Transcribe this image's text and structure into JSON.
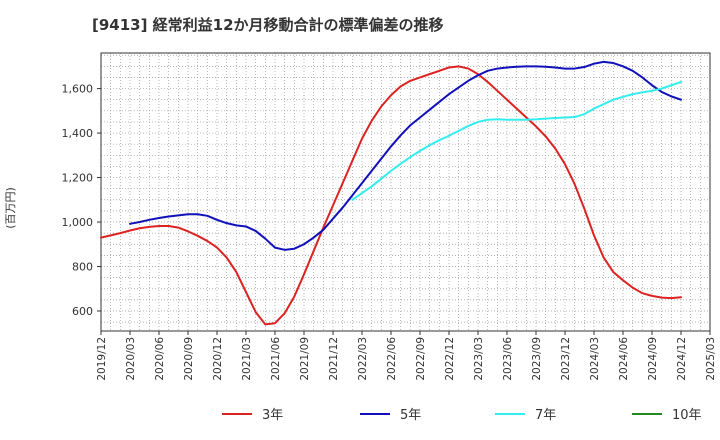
{
  "chart_data": {
    "type": "line",
    "title": "[9413]  経常利益12か月移動合計の標準偏差の推移",
    "ylabel": "(百万円)",
    "xlabel": "",
    "ylim": [
      510,
      1760
    ],
    "yticks": [
      600,
      800,
      1000,
      1200,
      1400,
      1600
    ],
    "ytick_labels": [
      "600",
      "800",
      "1,000",
      "1,200",
      "1,400",
      "1,600"
    ],
    "xlim": [
      "2019/12",
      "2025/03"
    ],
    "xticks": [
      "2019/12",
      "2020/03",
      "2020/06",
      "2020/09",
      "2020/12",
      "2021/03",
      "2021/06",
      "2021/09",
      "2021/12",
      "2022/03",
      "2022/06",
      "2022/09",
      "2022/12",
      "2023/03",
      "2023/06",
      "2023/09",
      "2023/12",
      "2024/03",
      "2024/06",
      "2024/09",
      "2024/12",
      "2025/03"
    ],
    "grid": true,
    "legend_position": "bottom",
    "series": [
      {
        "name": "3年",
        "color": "#dd2222",
        "x": [
          "2019/12",
          "2020/01",
          "2020/02",
          "2020/03",
          "2020/04",
          "2020/05",
          "2020/06",
          "2020/07",
          "2020/08",
          "2020/09",
          "2020/10",
          "2020/11",
          "2020/12",
          "2021/01",
          "2021/02",
          "2021/03",
          "2021/04",
          "2021/05",
          "2021/06",
          "2021/07",
          "2021/08",
          "2021/09",
          "2021/10",
          "2021/11",
          "2021/12",
          "2022/01",
          "2022/02",
          "2022/03",
          "2022/04",
          "2022/05",
          "2022/06",
          "2022/07",
          "2022/08",
          "2022/09",
          "2022/10",
          "2022/11",
          "2022/12",
          "2023/01",
          "2023/02",
          "2023/03",
          "2023/04",
          "2023/05",
          "2023/06",
          "2023/07",
          "2023/08",
          "2023/09",
          "2023/10",
          "2023/11",
          "2023/12",
          "2024/01",
          "2024/02",
          "2024/03",
          "2024/04",
          "2024/05",
          "2024/06",
          "2024/07",
          "2024/08",
          "2024/09",
          "2024/10",
          "2024/11",
          "2024/12"
        ],
        "values": [
          930,
          940,
          950,
          962,
          972,
          978,
          982,
          982,
          975,
          958,
          938,
          915,
          885,
          840,
          775,
          685,
          595,
          540,
          545,
          590,
          665,
          765,
          870,
          975,
          1075,
          1175,
          1275,
          1375,
          1455,
          1520,
          1570,
          1610,
          1635,
          1650,
          1665,
          1680,
          1695,
          1700,
          1690,
          1665,
          1630,
          1590,
          1550,
          1510,
          1470,
          1430,
          1385,
          1330,
          1260,
          1170,
          1060,
          940,
          840,
          775,
          738,
          705,
          680,
          668,
          660,
          658,
          662
        ]
      },
      {
        "name": "5年",
        "color": "#1111bb",
        "x": [
          "2019/12",
          "2020/01",
          "2020/02",
          "2020/03",
          "2020/04",
          "2020/05",
          "2020/06",
          "2020/07",
          "2020/08",
          "2020/09",
          "2020/10",
          "2020/11",
          "2020/12",
          "2021/01",
          "2021/02",
          "2021/03",
          "2021/04",
          "2021/05",
          "2021/06",
          "2021/07",
          "2021/08",
          "2021/09",
          "2021/10",
          "2021/11",
          "2021/12",
          "2022/01",
          "2022/02",
          "2022/03",
          "2022/04",
          "2022/05",
          "2022/06",
          "2022/07",
          "2022/08",
          "2022/09",
          "2022/10",
          "2022/11",
          "2022/12",
          "2023/01",
          "2023/02",
          "2023/03",
          "2023/04",
          "2023/05",
          "2023/06",
          "2023/07",
          "2023/08",
          "2023/09",
          "2023/10",
          "2023/11",
          "2023/12",
          "2024/01",
          "2024/02",
          "2024/03",
          "2024/04",
          "2024/05",
          "2024/06",
          "2024/07",
          "2024/08",
          "2024/09",
          "2024/10",
          "2024/11",
          "2024/12"
        ],
        "values": [
          null,
          null,
          null,
          992,
          1000,
          1010,
          1018,
          1025,
          1030,
          1035,
          1035,
          1028,
          1010,
          995,
          985,
          980,
          960,
          925,
          885,
          875,
          880,
          900,
          930,
          965,
          1015,
          1065,
          1120,
          1175,
          1230,
          1285,
          1340,
          1390,
          1435,
          1470,
          1505,
          1540,
          1575,
          1605,
          1635,
          1660,
          1680,
          1690,
          1695,
          1698,
          1700,
          1700,
          1698,
          1695,
          1690,
          1690,
          1697,
          1712,
          1720,
          1715,
          1700,
          1680,
          1650,
          1615,
          1585,
          1565,
          1550
        ]
      },
      {
        "name": "7年",
        "color": "#33eeee",
        "x": [
          "2021/12",
          "2022/01",
          "2022/02",
          "2022/03",
          "2022/04",
          "2022/05",
          "2022/06",
          "2022/07",
          "2022/08",
          "2022/09",
          "2022/10",
          "2022/11",
          "2022/12",
          "2023/01",
          "2023/02",
          "2023/03",
          "2023/04",
          "2023/05",
          "2023/06",
          "2023/07",
          "2023/08",
          "2023/09",
          "2023/10",
          "2023/11",
          "2023/12",
          "2024/01",
          "2024/02",
          "2024/03",
          "2024/04",
          "2024/05",
          "2024/06",
          "2024/07",
          "2024/08",
          "2024/09",
          "2024/10",
          "2024/11",
          "2024/12"
        ],
        "values": [
          null,
          null,
          1100,
          1130,
          1160,
          1195,
          1230,
          1262,
          1292,
          1320,
          1345,
          1368,
          1388,
          1410,
          1432,
          1450,
          1460,
          1462,
          1460,
          1460,
          1460,
          1462,
          1465,
          1468,
          1470,
          1472,
          1485,
          1510,
          1530,
          1550,
          1563,
          1575,
          1583,
          1590,
          1600,
          1615,
          1630
        ]
      },
      {
        "name": "10年",
        "color": "#228822",
        "x": [],
        "values": []
      }
    ]
  }
}
